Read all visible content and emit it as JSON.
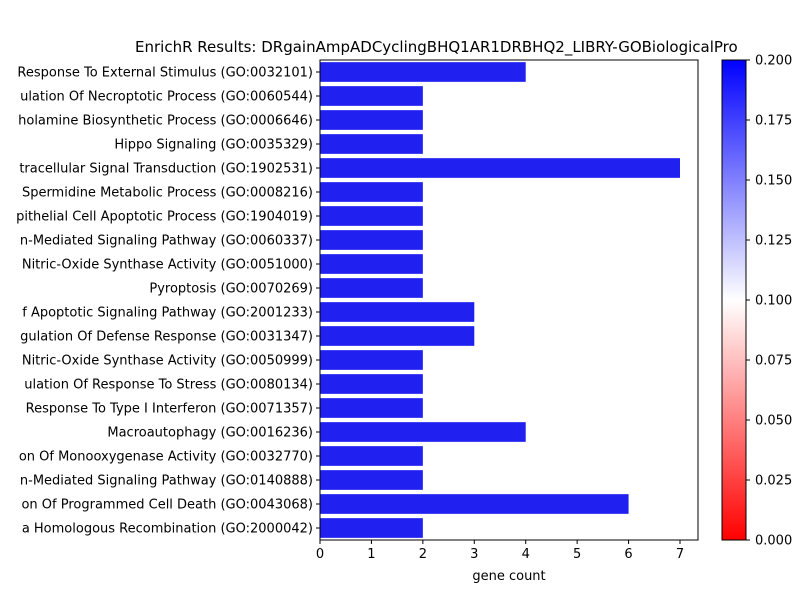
{
  "chart_data": {
    "type": "bar",
    "orientation": "horizontal",
    "title": "EnrichR Results: DRgainAmpADCyclingBHQ1AR1DRBHQ2_LIBRY-GOBiologicalPro",
    "xlabel": "gene count",
    "ylabel": "",
    "xlim": [
      0,
      7.35
    ],
    "xticks": [
      "0",
      "1",
      "2",
      "3",
      "4",
      "5",
      "6",
      "7"
    ],
    "grid": false,
    "bar_color": "#2020f0",
    "categories": [
      "Response To External Stimulus (GO:0032101)",
      "ulation Of Necroptotic Process (GO:0060544)",
      "holamine Biosynthetic Process (GO:0006646)",
      "Hippo Signaling (GO:0035329)",
      "tracellular Signal Transduction (GO:1902531)",
      "Spermidine Metabolic Process (GO:0008216)",
      "pithelial Cell Apoptotic Process (GO:1904019)",
      "n-Mediated Signaling Pathway (GO:0060337)",
      "Nitric-Oxide Synthase Activity (GO:0051000)",
      "Pyroptosis (GO:0070269)",
      "f Apoptotic Signaling Pathway (GO:2001233)",
      "gulation Of Defense Response (GO:0031347)",
      "Nitric-Oxide Synthase Activity (GO:0050999)",
      "ulation Of Response To Stress (GO:0080134)",
      "Response To Type I Interferon (GO:0071357)",
      "Macroautophagy (GO:0016236)",
      "on Of Monooxygenase Activity (GO:0032770)",
      "n-Mediated Signaling Pathway (GO:0140888)",
      "on Of Programmed Cell Death (GO:0043068)",
      "a Homologous Recombination (GO:2000042)"
    ],
    "values": [
      4,
      2,
      2,
      2,
      7,
      2,
      2,
      2,
      2,
      2,
      3,
      3,
      2,
      2,
      2,
      4,
      2,
      2,
      6,
      2
    ],
    "colorbar": {
      "min": 0.0,
      "max": 0.2,
      "colors": [
        "#ff0000",
        "#ffffff",
        "#0000ff"
      ],
      "ticks": [
        "0.000",
        "0.025",
        "0.050",
        "0.075",
        "0.100",
        "0.125",
        "0.150",
        "0.175",
        "0.200"
      ]
    }
  }
}
